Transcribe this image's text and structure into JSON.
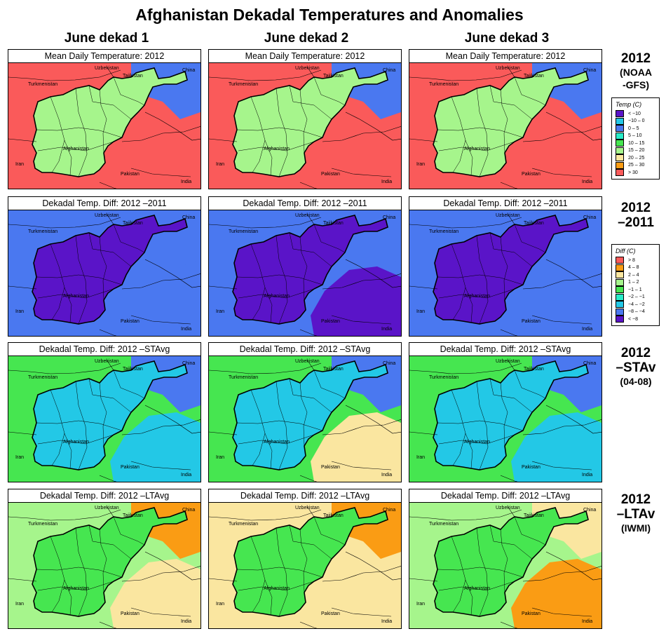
{
  "title": "Afghanistan Dekadal Temperatures and Anomalies",
  "columns": [
    "June dekad 1",
    "June dekad 2",
    "June dekad 3"
  ],
  "rows": [
    {
      "panel_title": "Mean Daily Temperature: 2012",
      "label": [
        "2012",
        "(NOAA",
        "-GFS)"
      ],
      "scheme": "temp",
      "panels": [
        {
          "background": "#fa5a5a",
          "inside": "#a6f58c",
          "south_east": "#fa5a5a",
          "north": "#4a78f0"
        },
        {
          "background": "#fa5a5a",
          "inside": "#a6f58c",
          "south_east": "#fa5a5a",
          "north": "#4a78f0"
        },
        {
          "background": "#fa5a5a",
          "inside": "#a6f58c",
          "south_east": "#fa5a5a",
          "north": "#4a78f0"
        }
      ]
    },
    {
      "panel_title": "Dekadal Temp. Diff:  2012 –2011",
      "label": [
        "2012",
        "–2011"
      ],
      "scheme": "diff",
      "panels": [
        {
          "background": "#4a78f0",
          "inside": "#5a14c8",
          "south_east": "#4a78f0",
          "north": "#4a78f0"
        },
        {
          "background": "#4a78f0",
          "inside": "#5a14c8",
          "south_east": "#5a14c8",
          "north": "#4a78f0"
        },
        {
          "background": "#4a78f0",
          "inside": "#5a14c8",
          "south_east": "#4a78f0",
          "north": "#4a78f0"
        }
      ]
    },
    {
      "panel_title": "Dekadal Temp. Diff:  2012 –STAvg",
      "label": [
        "2012",
        "–STAv",
        "(04-08)"
      ],
      "scheme": "diff",
      "panels": [
        {
          "background": "#46e650",
          "inside": "#23c8e6",
          "south_east": "#23c8e6",
          "north": "#4a78f0"
        },
        {
          "background": "#46e650",
          "inside": "#23c8e6",
          "south_east": "#fae6a0",
          "north": "#4a78f0"
        },
        {
          "background": "#46e650",
          "inside": "#23c8e6",
          "south_east": "#23c8e6",
          "north": "#4a78f0"
        }
      ]
    },
    {
      "panel_title": "Dekadal Temp. Diff:  2012 –LTAvg",
      "label": [
        "2012",
        "–LTAv",
        "(IWMI)"
      ],
      "scheme": "diff",
      "panels": [
        {
          "background": "#a6f58c",
          "inside": "#46e650",
          "south_east": "#fae6a0",
          "north": "#fa9c14"
        },
        {
          "background": "#fae6a0",
          "inside": "#46e650",
          "south_east": "#fae6a0",
          "north": "#fa9c14"
        },
        {
          "background": "#a6f58c",
          "inside": "#46e650",
          "south_east": "#fa9c14",
          "north": "#fae6a0"
        }
      ]
    }
  ],
  "places": {
    "uzbekistan": "Uzbekistan",
    "tajikistan": "Tajikistan",
    "china": "China",
    "turkmenistan": "Turkmenistan",
    "afghanistan": "Afghanistan",
    "iran": "Iran",
    "pakistan": "Pakistan",
    "india": "India"
  },
  "legends": {
    "temp": {
      "title": "Temp (C)",
      "items": [
        {
          "label": "< −10",
          "color": "#5a14c8"
        },
        {
          "label": "−10 –  0",
          "color": "#23c8e6"
        },
        {
          "label": "0 –  5",
          "color": "#4a78f0"
        },
        {
          "label": "5 – 10",
          "color": "#28ebc8"
        },
        {
          "label": "10 – 15",
          "color": "#46e650"
        },
        {
          "label": "15 – 20",
          "color": "#a6f58c"
        },
        {
          "label": "20 – 25",
          "color": "#fae6a0"
        },
        {
          "label": "25 – 30",
          "color": "#fa9c14"
        },
        {
          "label": "> 30",
          "color": "#fa5a5a"
        }
      ]
    },
    "diff": {
      "title": "Diff (C)",
      "items": [
        {
          "label": "> 8",
          "color": "#fa5a5a"
        },
        {
          "label": "4 – 8",
          "color": "#fa9c14"
        },
        {
          "label": "2 – 4",
          "color": "#fae6a0"
        },
        {
          "label": "1 – 2",
          "color": "#a6f58c"
        },
        {
          "label": "−1 – 1",
          "color": "#46e650"
        },
        {
          "label": "−2 – −1",
          "color": "#28ebc8"
        },
        {
          "label": "−4 – −2",
          "color": "#23c8e6"
        },
        {
          "label": "−8 – −4",
          "color": "#4a78f0"
        },
        {
          "label": "< −8",
          "color": "#5a14c8"
        }
      ]
    }
  }
}
